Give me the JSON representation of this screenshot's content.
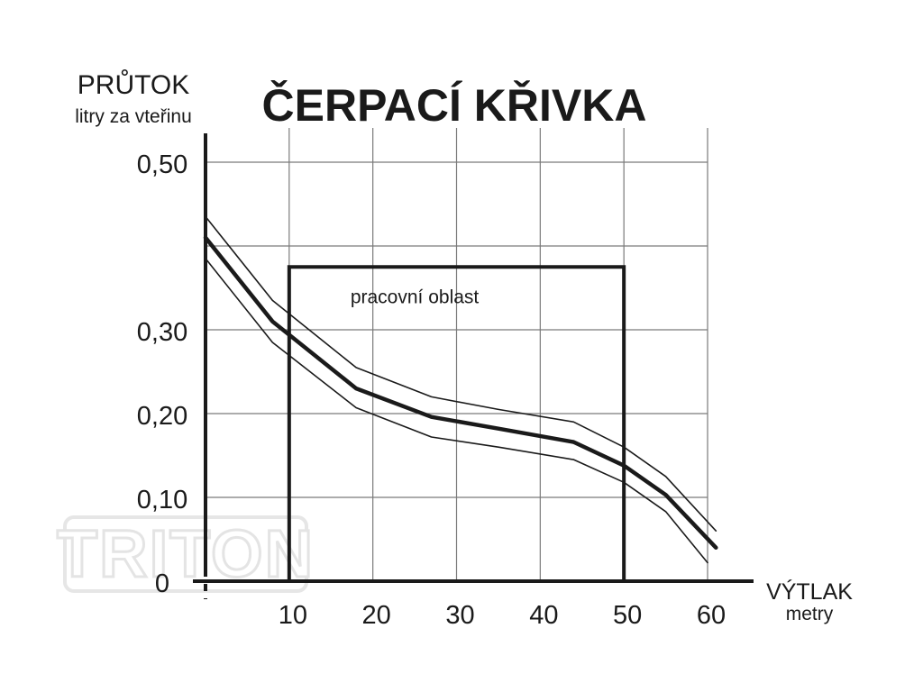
{
  "chart_data": {
    "type": "line",
    "title": "ČERPACÍ KŘIVKA",
    "ylabel": "PRŮTOK",
    "ylabel_unit": "litry za vteřinu",
    "xlabel": "VÝTLAK",
    "xlabel_unit": "metry",
    "xlim": [
      0,
      60
    ],
    "ylim": [
      0,
      0.5
    ],
    "x_ticks": [
      "10",
      "20",
      "30",
      "40",
      "50",
      "60"
    ],
    "x_tick_values": [
      10,
      20,
      30,
      40,
      50,
      60
    ],
    "y_ticks": [
      "0",
      "0,10",
      "0,20",
      "0,30",
      "0,50"
    ],
    "y_tick_values": [
      0,
      0.1,
      0.2,
      0.3,
      0.5
    ],
    "grid": true,
    "series": [
      {
        "role": "upper",
        "x": [
          0,
          8,
          18,
          27,
          35,
          44,
          50,
          55,
          61
        ],
        "y": [
          0.435,
          0.335,
          0.255,
          0.22,
          0.205,
          0.19,
          0.16,
          0.125,
          0.06
        ]
      },
      {
        "role": "main",
        "x": [
          0,
          8,
          18,
          27,
          35,
          44,
          50,
          55,
          61
        ],
        "y": [
          0.41,
          0.31,
          0.23,
          0.196,
          0.182,
          0.166,
          0.138,
          0.103,
          0.04
        ]
      },
      {
        "role": "lower",
        "x": [
          0,
          8,
          18,
          27,
          35,
          44,
          50,
          55,
          60
        ],
        "y": [
          0.385,
          0.285,
          0.207,
          0.172,
          0.16,
          0.145,
          0.118,
          0.083,
          0.022
        ]
      }
    ],
    "annotation": {
      "label": "pracovní oblast",
      "x": [
        10,
        50
      ],
      "y": [
        0,
        0.375
      ]
    }
  },
  "watermark": {
    "text": "TRITON"
  }
}
